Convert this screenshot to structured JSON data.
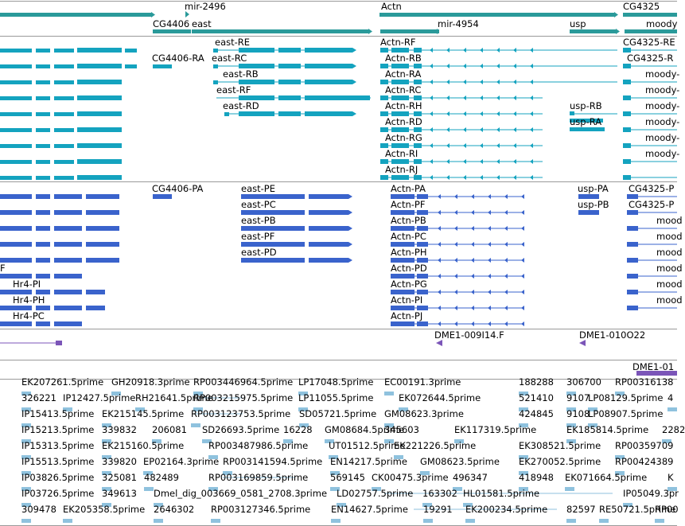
{
  "colors": {
    "gene": "#2a9a9a",
    "transcript": "#14a3bf",
    "protein": "#3a63cc",
    "mirna": "#7b55b8",
    "est": "#8fc2de",
    "separator": "#9a9a9a"
  },
  "genes": [
    {
      "label": "mir-2496"
    },
    {
      "label": "Actn"
    },
    {
      "label": "CG4325"
    },
    {
      "label": "CG4406"
    },
    {
      "label": "east"
    },
    {
      "label": "mir-4954"
    },
    {
      "label": "usp"
    },
    {
      "label": "moody"
    }
  ],
  "transcripts": [
    {
      "label": "east-RE"
    },
    {
      "label": "Actn-RF"
    },
    {
      "label": "CG4325-RE"
    },
    {
      "label": "CG4406-RA"
    },
    {
      "label": "east-RC"
    },
    {
      "label": "Actn-RB"
    },
    {
      "label": "CG4325-R"
    },
    {
      "label": "east-RB"
    },
    {
      "label": "Actn-RA"
    },
    {
      "label": "moody-"
    },
    {
      "label": "east-RF"
    },
    {
      "label": "Actn-RC"
    },
    {
      "label": "moody-"
    },
    {
      "label": "east-RD"
    },
    {
      "label": "Actn-RH"
    },
    {
      "label": "usp-RB"
    },
    {
      "label": "moody-"
    },
    {
      "label": "Actn-RD"
    },
    {
      "label": "usp-RA"
    },
    {
      "label": "moody-"
    },
    {
      "label": "Actn-RG"
    },
    {
      "label": "moody-"
    },
    {
      "label": "Actn-RI"
    },
    {
      "label": "moody-"
    },
    {
      "label": "Actn-RJ"
    }
  ],
  "proteins": [
    {
      "label": "CG4406-PA"
    },
    {
      "label": "east-PE"
    },
    {
      "label": "Actn-PA"
    },
    {
      "label": "usp-PA"
    },
    {
      "label": "CG4325-P"
    },
    {
      "label": "east-PC"
    },
    {
      "label": "Actn-PF"
    },
    {
      "label": "usp-PB"
    },
    {
      "label": "CG4325-P"
    },
    {
      "label": "east-PB"
    },
    {
      "label": "Actn-PB"
    },
    {
      "label": "mood"
    },
    {
      "label": "east-PF"
    },
    {
      "label": "Actn-PC"
    },
    {
      "label": "mood"
    },
    {
      "label": "east-PD"
    },
    {
      "label": "Actn-PH"
    },
    {
      "label": "mood"
    },
    {
      "label": "F"
    },
    {
      "label": "Actn-PD"
    },
    {
      "label": "mood"
    },
    {
      "label": "Hr4-PI"
    },
    {
      "label": "Actn-PG"
    },
    {
      "label": "mood"
    },
    {
      "label": "Hr4-PH"
    },
    {
      "label": "Actn-PI"
    },
    {
      "label": "mood"
    },
    {
      "label": "Hr4-PC"
    },
    {
      "label": "Actn-PJ"
    }
  ],
  "inserts": [
    {
      "label": "DME1-009I14.F"
    },
    {
      "label": "DME1-010O22"
    },
    {
      "label": "DME1-01"
    }
  ],
  "ests": [
    {
      "label": "EK207261.5prime"
    },
    {
      "label": "GH20918.3prime"
    },
    {
      "label": "RP003446964.5prime"
    },
    {
      "label": "LP17048.5prime"
    },
    {
      "label": "EC00191.3prime"
    },
    {
      "label": "188288"
    },
    {
      "label": "306700"
    },
    {
      "label": "RP00316138"
    },
    {
      "label": "326221"
    },
    {
      "label": "IP12427.5prime"
    },
    {
      "label": "RH21641.5prime"
    },
    {
      "label": "RP003215975.5prime"
    },
    {
      "label": "LP11055.5prime"
    },
    {
      "label": "EK072644.5prime"
    },
    {
      "label": "521410"
    },
    {
      "label": "9107"
    },
    {
      "label": "LP08129.5prime"
    },
    {
      "label": "4"
    },
    {
      "label": "IP15413.5prime"
    },
    {
      "label": "EK215145.5prime"
    },
    {
      "label": "RP003123753.5prime"
    },
    {
      "label": "SD05721.5prime"
    },
    {
      "label": "GM08623.3prime"
    },
    {
      "label": "424845"
    },
    {
      "label": "9108"
    },
    {
      "label": "LP08907.5prime"
    },
    {
      "label": "IP15213.5prime"
    },
    {
      "label": "339832"
    },
    {
      "label": "206081"
    },
    {
      "label": "SD26693.5prime"
    },
    {
      "label": "16228"
    },
    {
      "label": "GM08684.5prime"
    },
    {
      "label": "345603"
    },
    {
      "label": "EK117319.5prime"
    },
    {
      "label": "EK185814.5prime"
    },
    {
      "label": "2282"
    },
    {
      "label": "IP15313.5prime"
    },
    {
      "label": "EK215160.5prime"
    },
    {
      "label": "RP003487986.5prime"
    },
    {
      "label": "UT01512.5prime"
    },
    {
      "label": "EK221226.5prime"
    },
    {
      "label": "EK308521.5prime"
    },
    {
      "label": "RP00359709"
    },
    {
      "label": "IP15513.5prime"
    },
    {
      "label": "339820"
    },
    {
      "label": "EP02164.3prime"
    },
    {
      "label": "RP003141594.5prime"
    },
    {
      "label": "EN14217.5prime"
    },
    {
      "label": "GM08623.5prime"
    },
    {
      "label": "EK270052.5prime"
    },
    {
      "label": "RP00424389"
    },
    {
      "label": "IP03826.5prime"
    },
    {
      "label": "325081"
    },
    {
      "label": "482489"
    },
    {
      "label": "RP003169859.5prime"
    },
    {
      "label": "569145"
    },
    {
      "label": "CK00475.3prime"
    },
    {
      "label": "496347"
    },
    {
      "label": "418948"
    },
    {
      "label": "EK071664.5prime"
    },
    {
      "label": "K"
    },
    {
      "label": "IP03726.5prime"
    },
    {
      "label": "349613"
    },
    {
      "label": "Dmel_dig_003669_0581_2708.3prime"
    },
    {
      "label": "LD02757.5prime"
    },
    {
      "label": "163302"
    },
    {
      "label": "HL01581.5prime"
    },
    {
      "label": "IP05049.3pr"
    },
    {
      "label": "309478"
    },
    {
      "label": "EK205358.5prime"
    },
    {
      "label": "2646302"
    },
    {
      "label": "RP003127346.5prime"
    },
    {
      "label": "EN14627.5prime"
    },
    {
      "label": "19291"
    },
    {
      "label": "EK200234.5prime"
    },
    {
      "label": "82597"
    },
    {
      "label": "RE50721.5prime"
    },
    {
      "label": "RP00"
    }
  ]
}
